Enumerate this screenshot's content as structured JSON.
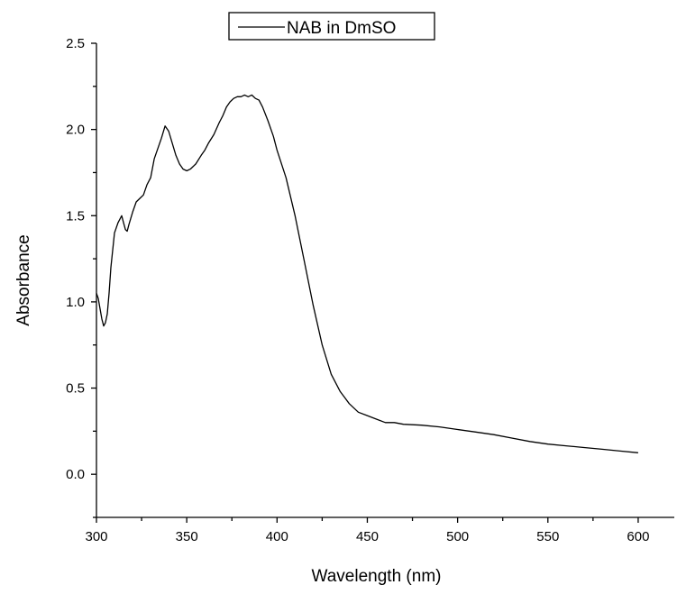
{
  "chart_data": {
    "type": "line",
    "title": "",
    "xlabel": "Wavelength (nm)",
    "ylabel": "Absorbance",
    "xlim": [
      300,
      620
    ],
    "ylim": [
      -0.25,
      2.5
    ],
    "x_ticks": [
      300,
      350,
      400,
      450,
      500,
      550,
      600
    ],
    "x_tick_labels": [
      "300",
      "350",
      "400",
      "450",
      "500",
      "550",
      "600"
    ],
    "y_ticks": [
      0.0,
      0.5,
      1.0,
      1.5,
      2.0,
      2.5
    ],
    "y_tick_labels": [
      "0.0",
      "0.5",
      "1.0",
      "1.5",
      "2.0",
      "2.5"
    ],
    "grid": false,
    "legend_position": "top-center",
    "line_color": "#000000",
    "series": [
      {
        "name": "NAB in DmSO",
        "x": [
          300,
          301,
          302,
          303,
          304,
          305,
          306,
          307,
          308,
          310,
          312,
          314,
          315,
          316,
          317,
          318,
          320,
          322,
          324,
          326,
          328,
          330,
          332,
          334,
          336,
          338,
          340,
          342,
          344,
          346,
          348,
          350,
          352,
          355,
          358,
          360,
          362,
          365,
          368,
          370,
          372,
          374,
          376,
          378,
          380,
          382,
          384,
          386,
          388,
          390,
          392,
          395,
          398,
          400,
          405,
          410,
          415,
          420,
          425,
          430,
          435,
          440,
          445,
          450,
          455,
          460,
          465,
          470,
          480,
          490,
          500,
          510,
          520,
          530,
          540,
          550,
          560,
          570,
          580,
          590,
          600
        ],
        "y": [
          1.05,
          1.02,
          0.96,
          0.9,
          0.86,
          0.88,
          0.93,
          1.05,
          1.2,
          1.4,
          1.46,
          1.5,
          1.46,
          1.42,
          1.41,
          1.45,
          1.52,
          1.58,
          1.6,
          1.62,
          1.68,
          1.72,
          1.83,
          1.89,
          1.95,
          2.02,
          1.99,
          1.92,
          1.85,
          1.8,
          1.77,
          1.76,
          1.77,
          1.8,
          1.85,
          1.88,
          1.92,
          1.97,
          2.04,
          2.08,
          2.13,
          2.16,
          2.18,
          2.19,
          2.19,
          2.2,
          2.19,
          2.2,
          2.18,
          2.17,
          2.13,
          2.05,
          1.96,
          1.88,
          1.72,
          1.5,
          1.24,
          0.98,
          0.75,
          0.58,
          0.48,
          0.41,
          0.36,
          0.34,
          0.32,
          0.3,
          0.3,
          0.29,
          0.285,
          0.275,
          0.26,
          0.245,
          0.23,
          0.21,
          0.19,
          0.175,
          0.165,
          0.155,
          0.145,
          0.135,
          0.125
        ]
      }
    ]
  }
}
